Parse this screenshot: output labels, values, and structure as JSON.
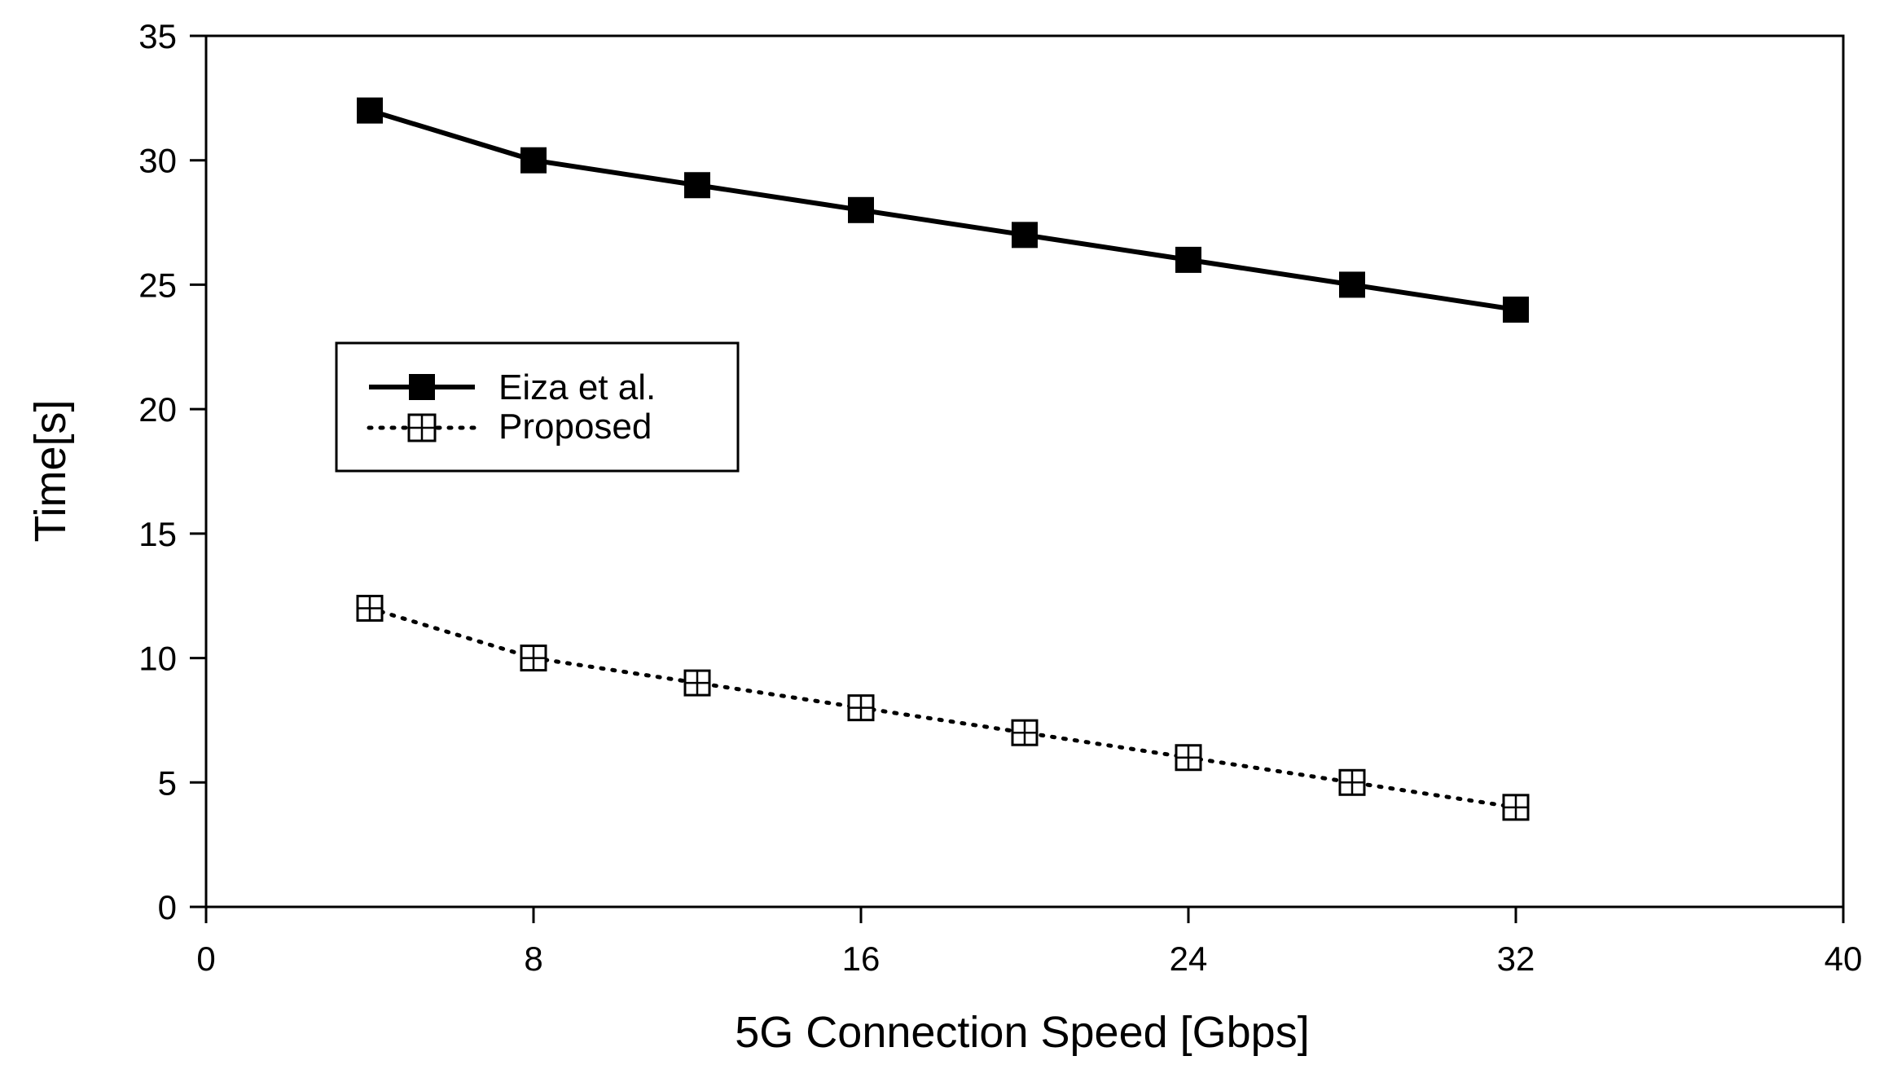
{
  "chart_data": {
    "type": "line",
    "title": "",
    "xlabel": "5G Connection Speed [Gbps]",
    "ylabel": "Time[s]",
    "xlim": [
      0,
      40
    ],
    "ylim": [
      0,
      35
    ],
    "xticks": [
      0,
      8,
      16,
      24,
      32,
      40
    ],
    "yticks": [
      0,
      5,
      10,
      15,
      20,
      25,
      30,
      35
    ],
    "grid": false,
    "legend_position": "middle-left",
    "series": [
      {
        "name": "Eiza et al.",
        "style": "solid",
        "marker": "filled-square",
        "color": "#000000",
        "x": [
          4,
          8,
          12,
          16,
          20,
          24,
          28,
          32
        ],
        "y": [
          32,
          30,
          29,
          28,
          27,
          26,
          25,
          24
        ]
      },
      {
        "name": "Proposed",
        "style": "dotted",
        "marker": "crossed-square",
        "color": "#000000",
        "x": [
          4,
          8,
          12,
          16,
          20,
          24,
          28,
          32
        ],
        "y": [
          12,
          10,
          9,
          8,
          7,
          6,
          5,
          4
        ]
      }
    ]
  }
}
